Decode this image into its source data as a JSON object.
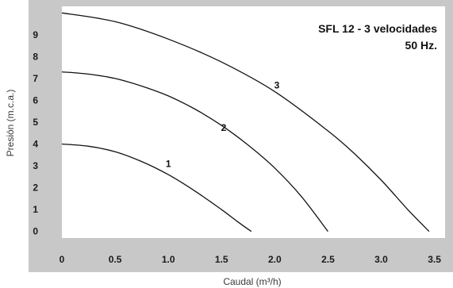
{
  "chart_data": {
    "type": "line",
    "title": "SFL 12 - 3 velocidades",
    "subtitle": "50 Hz.",
    "xlabel": "Caudal (m³/h)",
    "ylabel": "Presión (m.c.a.)",
    "xlim": [
      0,
      3.6
    ],
    "ylim": [
      -0.3,
      10.3
    ],
    "x_ticks": [
      "0",
      "0.5",
      "1.0",
      "1.5",
      "2.0",
      "2.5",
      "3.0",
      "3.5"
    ],
    "x_tick_values": [
      0,
      0.5,
      1.0,
      1.5,
      2.0,
      2.5,
      3.0,
      3.5
    ],
    "y_ticks": [
      "0",
      "1",
      "2",
      "3",
      "4",
      "5",
      "6",
      "7",
      "8",
      "9"
    ],
    "y_tick_values": [
      0,
      1,
      2,
      3,
      4,
      5,
      6,
      7,
      8,
      9
    ],
    "grid": false,
    "series": [
      {
        "name": "1",
        "x": [
          0,
          0.25,
          0.5,
          0.75,
          1.0,
          1.25,
          1.5,
          1.65,
          1.78
        ],
        "y": [
          4.0,
          3.9,
          3.65,
          3.2,
          2.6,
          1.85,
          1.0,
          0.45,
          0.0
        ]
      },
      {
        "name": "2",
        "x": [
          0,
          0.25,
          0.5,
          0.75,
          1.0,
          1.25,
          1.5,
          1.75,
          2.0,
          2.25,
          2.5
        ],
        "y": [
          7.3,
          7.2,
          7.0,
          6.65,
          6.2,
          5.6,
          4.85,
          3.95,
          2.9,
          1.6,
          0.0
        ]
      },
      {
        "name": "3",
        "x": [
          0,
          0.5,
          1.0,
          1.5,
          2.0,
          2.5,
          2.75,
          3.0,
          3.25,
          3.45
        ],
        "y": [
          10.0,
          9.6,
          8.8,
          7.75,
          6.4,
          4.6,
          3.55,
          2.35,
          1.0,
          0.0
        ]
      }
    ],
    "curve_labels": [
      {
        "text": "1",
        "x": 1.0,
        "y": 2.95
      },
      {
        "text": "2",
        "x": 1.52,
        "y": 4.6
      },
      {
        "text": "3",
        "x": 2.02,
        "y": 6.55
      }
    ]
  }
}
